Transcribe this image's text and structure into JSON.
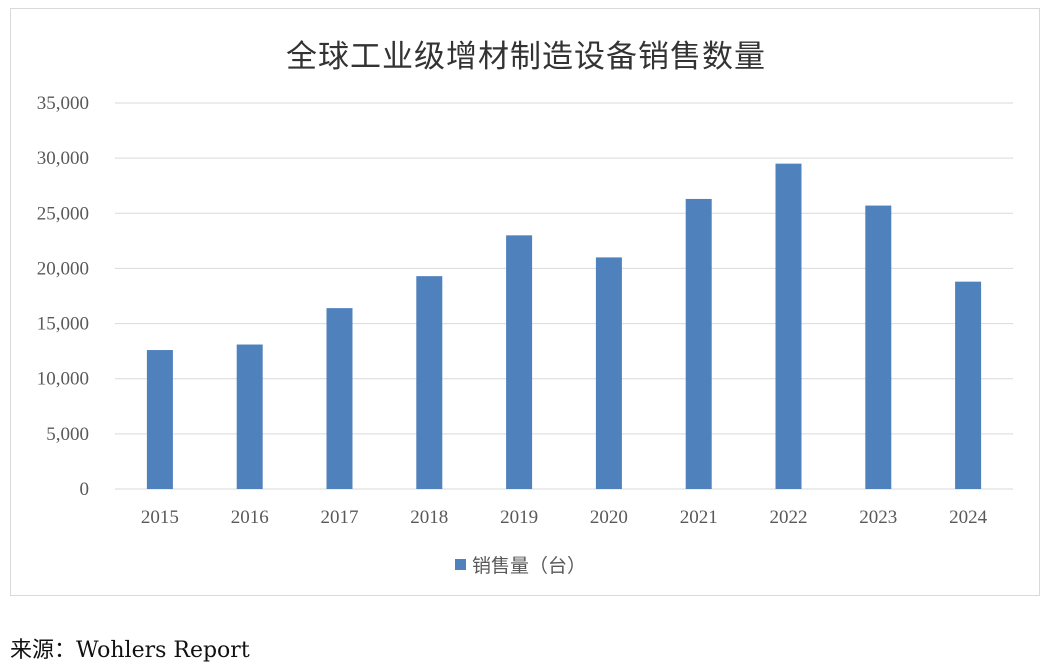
{
  "chart_data": {
    "type": "bar",
    "title": "全球工业级增材制造设备销售数量",
    "categories": [
      "2015",
      "2016",
      "2017",
      "2018",
      "2019",
      "2020",
      "2021",
      "2022",
      "2023",
      "2024"
    ],
    "series": [
      {
        "name": "销售量（台）",
        "values": [
          12600,
          13100,
          16400,
          19300,
          23000,
          21000,
          26300,
          29500,
          25700,
          18800
        ]
      }
    ],
    "ylim": [
      0,
      35000
    ],
    "yticks": [
      "0",
      "5,000",
      "10,000",
      "15,000",
      "20,000",
      "25,000",
      "30,000",
      "35,000"
    ],
    "ytick_values": [
      0,
      5000,
      10000,
      15000,
      20000,
      25000,
      30000,
      35000
    ],
    "grid": true,
    "legend_position": "bottom",
    "colors": {
      "bar": "#4f81bd",
      "grid": "#d9d9d9"
    }
  },
  "source": "来源：Wohlers Report"
}
